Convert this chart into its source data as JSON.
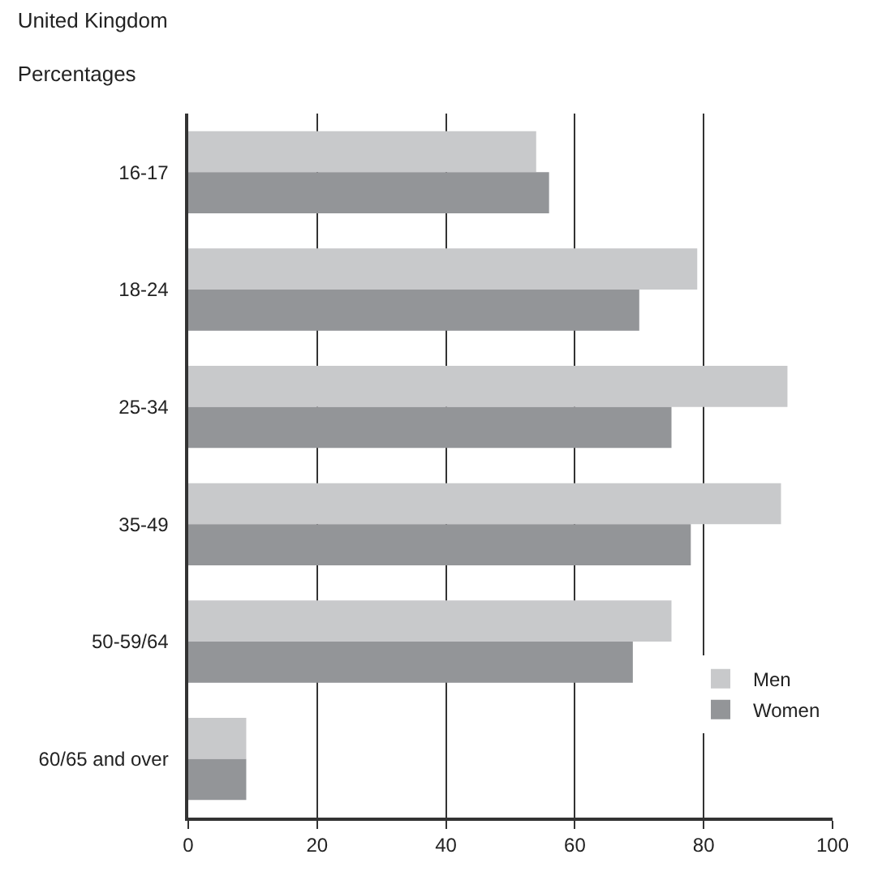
{
  "chart_data": {
    "type": "bar",
    "orientation": "horizontal",
    "title": "United Kingdom",
    "subtitle": "Percentages",
    "categories": [
      "16-17",
      "18-24",
      "25-34",
      "35-49",
      "50-59/64",
      "60/65 and over"
    ],
    "series": [
      {
        "name": "Men",
        "color": "#c8c9cb",
        "values": [
          54,
          79,
          93,
          92,
          75,
          9
        ]
      },
      {
        "name": "Women",
        "color": "#939598",
        "values": [
          56,
          70,
          75,
          78,
          69,
          9
        ]
      }
    ],
    "xlim": [
      0,
      100
    ],
    "xticks": [
      0,
      20,
      40,
      60,
      80,
      100
    ],
    "grid": "x",
    "legend": "bottom right"
  }
}
